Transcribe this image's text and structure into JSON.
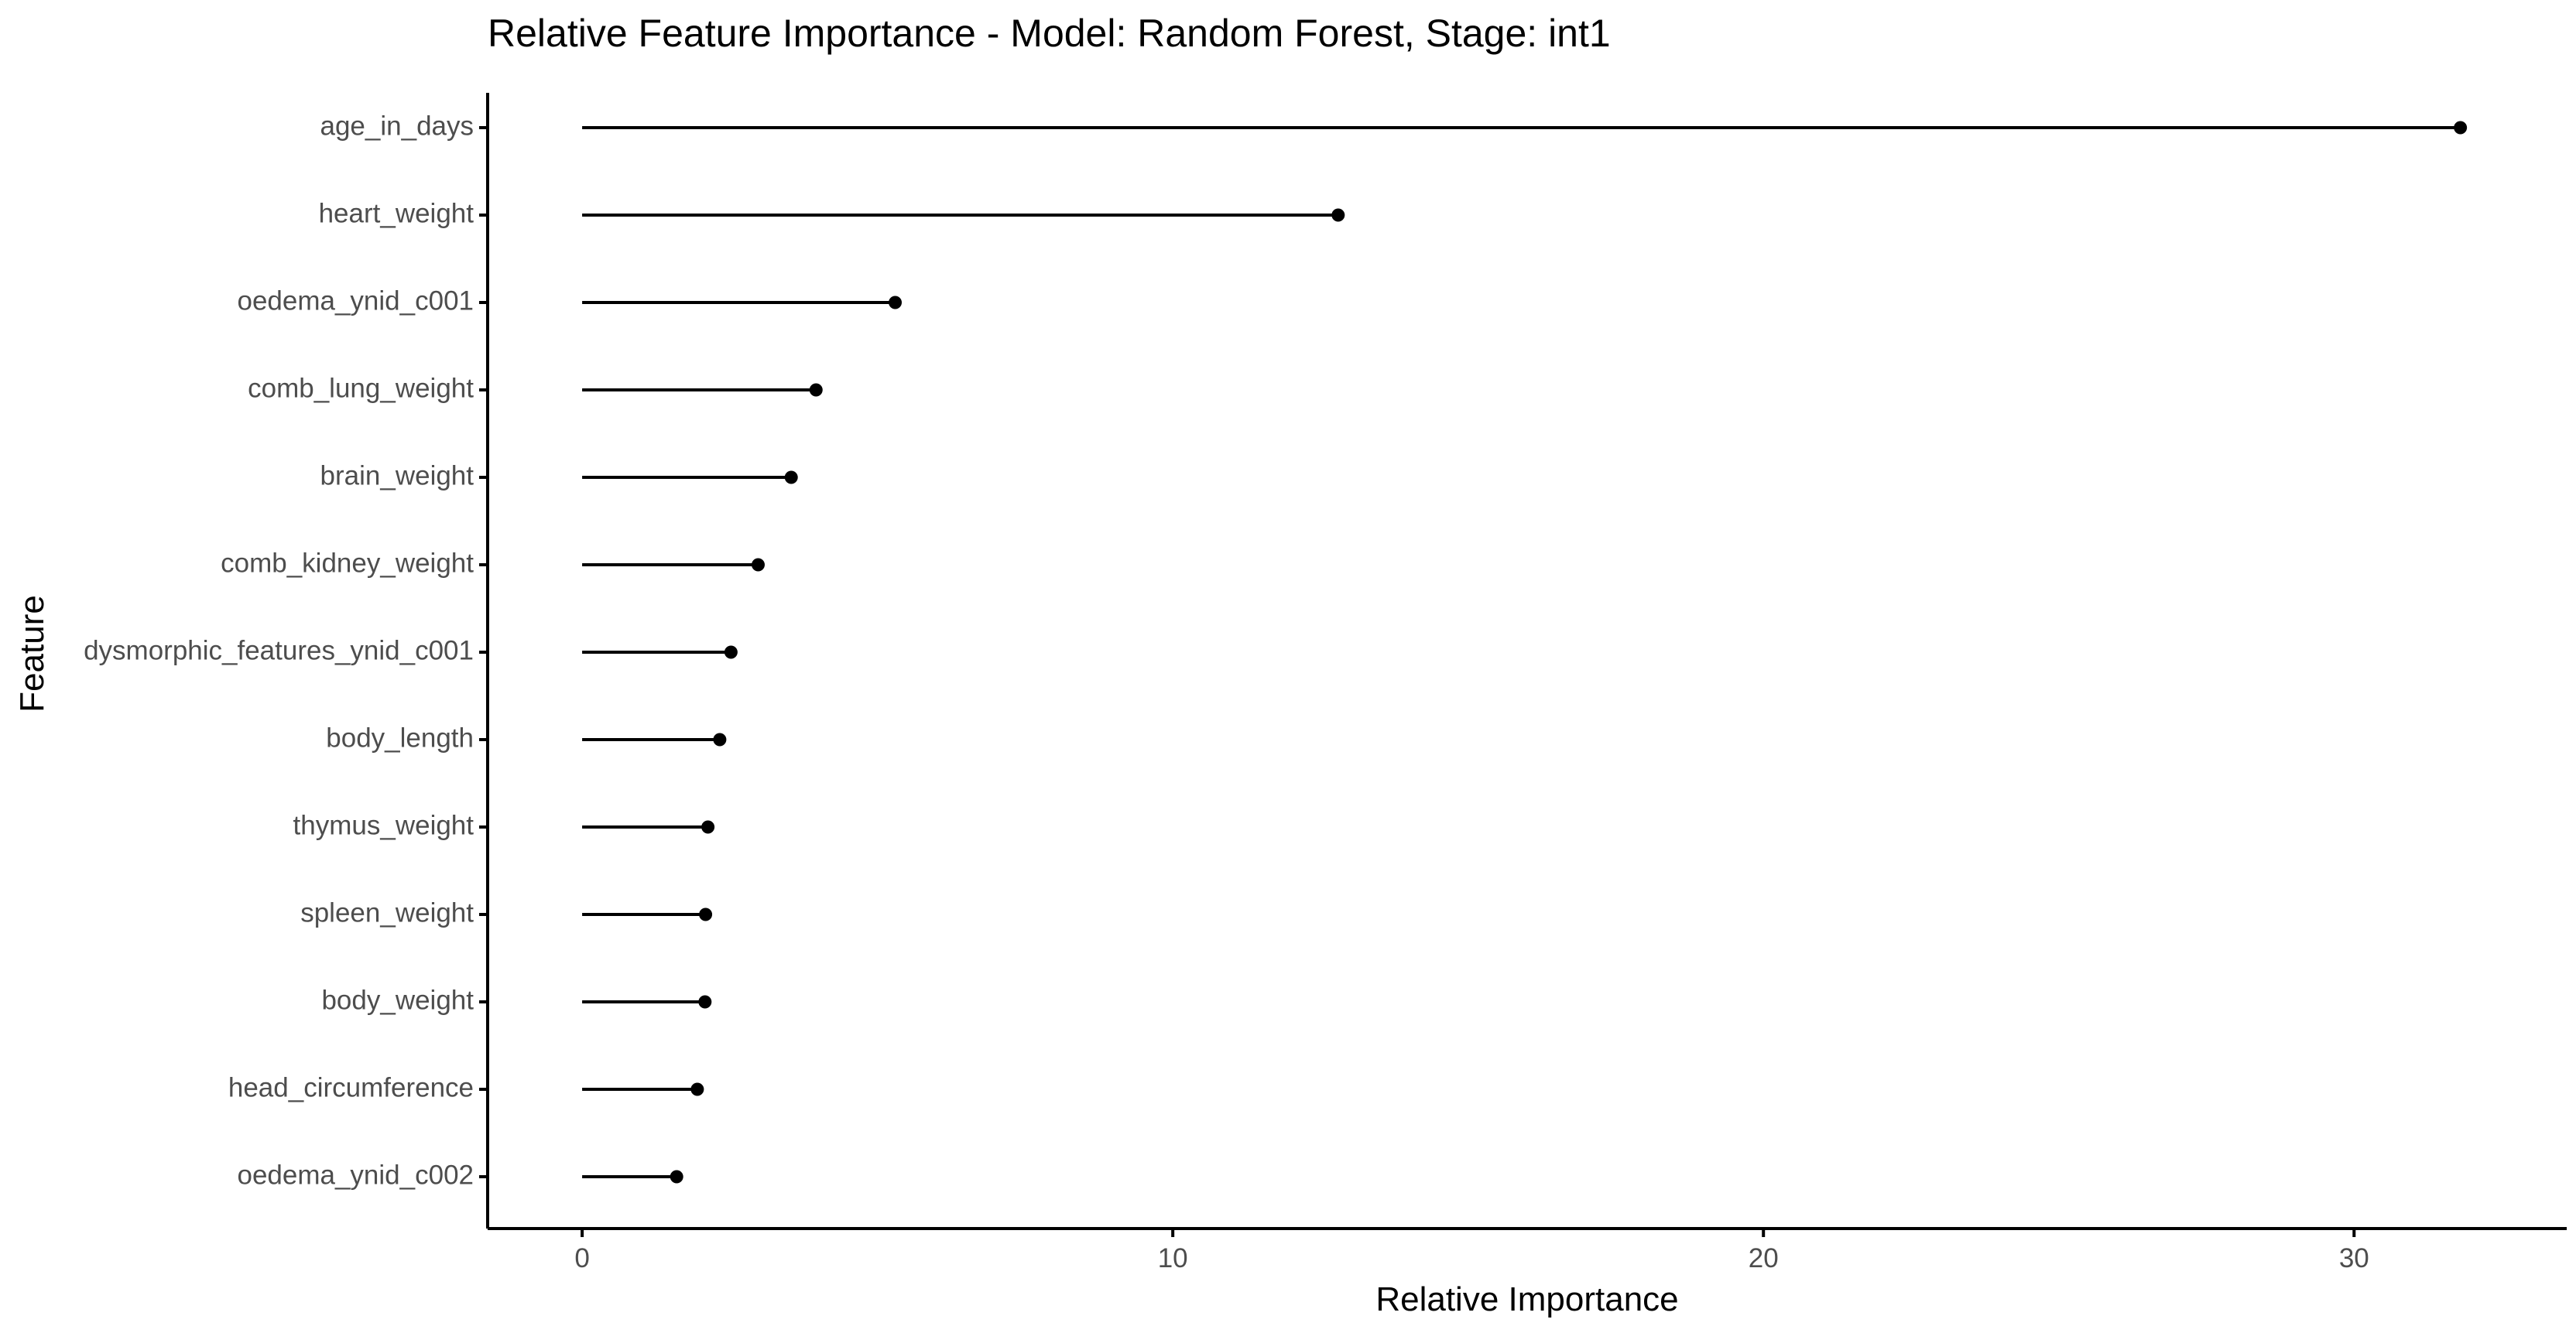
{
  "chart_data": {
    "type": "lollipop",
    "title": "Relative Feature Importance - Model: Random Forest, Stage: int1",
    "xlabel": "Relative Importance",
    "ylabel": "Feature",
    "xlim": [
      -1.6,
      33.6
    ],
    "xticks": [
      0,
      10,
      20,
      30
    ],
    "grid": false,
    "legend": "none",
    "categories": [
      "age_in_days",
      "heart_weight",
      "oedema_ynid_c001",
      "comb_lung_weight",
      "brain_weight",
      "comb_kidney_weight",
      "dysmorphic_features_ynid_c001",
      "body_length",
      "thymus_weight",
      "spleen_weight",
      "body_weight",
      "head_circumference",
      "oedema_ynid_c002"
    ],
    "values": [
      31.8,
      12.8,
      5.3,
      3.96,
      3.54,
      2.98,
      2.52,
      2.33,
      2.13,
      2.09,
      2.08,
      1.95,
      1.6
    ],
    "colors": {
      "mark": "#000000",
      "axis": "#000000",
      "tick_label": "#4d4d4d",
      "text": "#000000"
    }
  }
}
